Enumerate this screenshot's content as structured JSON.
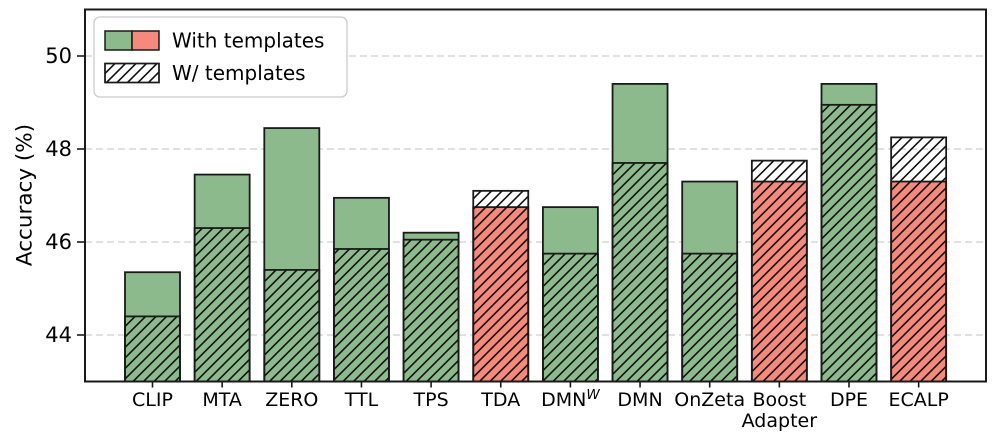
{
  "chart_data": {
    "type": "bar",
    "title": "",
    "ylabel": "Accuracy (%)",
    "xlabel": "",
    "ylim": [
      43.0,
      51.0
    ],
    "yticks": [
      44,
      46,
      48,
      50
    ],
    "grid": "horizontal-dashed",
    "legend": {
      "position": "upper-left",
      "entries": [
        {
          "label": "With templates",
          "swatch": "split-green-red-solid"
        },
        {
          "label": "W/ templates",
          "swatch": "white-diagonal-hatch"
        }
      ]
    },
    "categories": [
      "CLIP",
      "MTA",
      "ZERO",
      "TTL",
      "TPS",
      "TDA",
      "DMN^W",
      "DMN",
      "OnZeta",
      "Boost\nAdapter",
      "DPE",
      "ECALP"
    ],
    "series": [
      {
        "name": "With templates",
        "style": "solid",
        "values": [
          45.35,
          47.45,
          48.45,
          46.95,
          46.2,
          46.75,
          46.75,
          49.4,
          47.3,
          47.3,
          49.4,
          47.3
        ]
      },
      {
        "name": "W/ templates",
        "style": "hatched",
        "values": [
          44.4,
          46.3,
          45.4,
          45.85,
          46.05,
          47.1,
          45.75,
          47.7,
          45.75,
          47.75,
          48.95,
          48.25
        ]
      }
    ],
    "bar_palette": [
      "green",
      "green",
      "green",
      "green",
      "green",
      "red",
      "green",
      "green",
      "green",
      "red",
      "green",
      "red"
    ],
    "colors": {
      "green": "#8cba8c",
      "red": "#f5897b",
      "edge": "#1a1a1a",
      "grid": "#cfcfcf",
      "hatch": "#111111",
      "legend_border": "#cccccc",
      "background": "#ffffff"
    }
  }
}
